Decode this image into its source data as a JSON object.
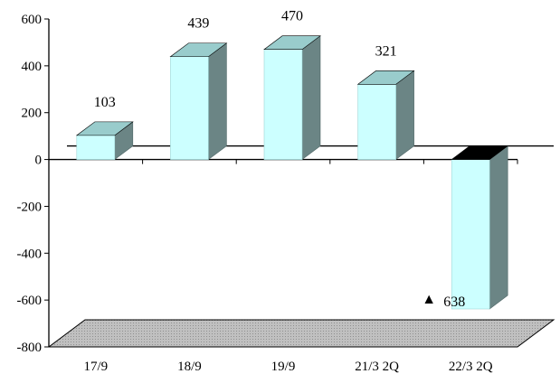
{
  "chart_data": {
    "type": "bar",
    "categories": [
      "17/9",
      "18/9",
      "19/9",
      "21/3 2Q",
      "22/3 2Q"
    ],
    "values": [
      103,
      439,
      470,
      321,
      -638
    ],
    "data_labels": [
      "103",
      "439",
      "470",
      "321",
      "638"
    ],
    "negative_marker": "▲",
    "ylim": [
      -800,
      600
    ],
    "yticks": [
      600,
      400,
      200,
      0,
      -200,
      -400,
      -600,
      -800
    ],
    "ytick_labels": [
      "600",
      "400",
      "200",
      "0",
      "-200",
      "-400",
      "-600",
      "-800"
    ],
    "title": "",
    "xlabel": "",
    "ylabel": "",
    "grid": false,
    "legend": "none",
    "style": "3d",
    "colors": {
      "bar_front": "#ccffff",
      "bar_top": "#99cccc",
      "bar_side": "#6b8585",
      "negative_top": "#000000",
      "floor": "#c0c0c0",
      "axis": "#000000"
    }
  }
}
